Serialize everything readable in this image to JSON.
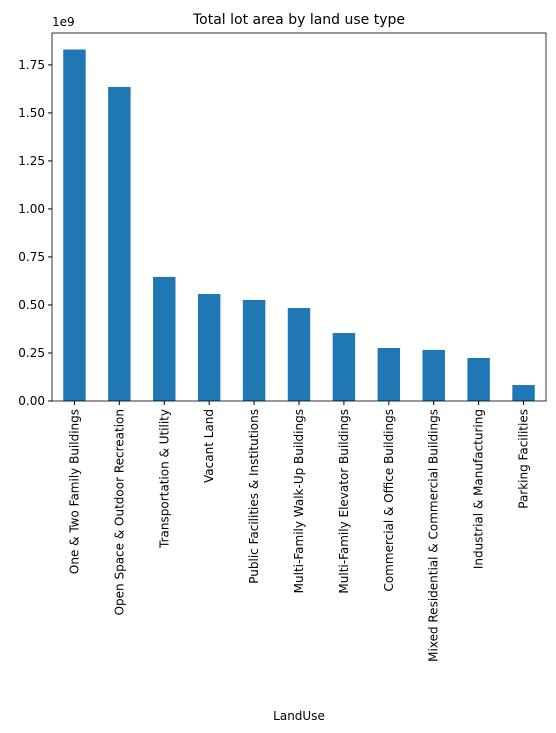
{
  "chart_data": {
    "type": "bar",
    "title": "Total lot area by land use type",
    "x_label": "LandUse",
    "y_offset_label": "1e9",
    "categories": [
      "One & Two Family Buildings",
      "Open Space & Outdoor Recreation",
      "Transportation & Utility",
      "Vacant Land",
      "Public Facilities & Institutions",
      "Multi-Family Walk-Up Buildings",
      "Multi-Family Elevator Buildings",
      "Commercial & Office Buildings",
      "Mixed Residential & Commercial Buildings",
      "Industrial & Manufacturing",
      "Parking Facilities"
    ],
    "values": [
      1830000000,
      1635000000,
      646000000,
      557000000,
      526000000,
      484000000,
      354000000,
      276000000,
      266000000,
      224000000,
      83000000
    ],
    "color": "#1f77b4",
    "ylim": [
      0,
      1916000000
    ],
    "yticks": [
      {
        "value": 0,
        "label": "0.00"
      },
      {
        "value": 250000000,
        "label": "0.25"
      },
      {
        "value": 500000000,
        "label": "0.50"
      },
      {
        "value": 750000000,
        "label": "0.75"
      },
      {
        "value": 1000000000,
        "label": "1.00"
      },
      {
        "value": 1250000000,
        "label": "1.25"
      },
      {
        "value": 1500000000,
        "label": "1.50"
      },
      {
        "value": 1750000000,
        "label": "1.75"
      }
    ]
  }
}
